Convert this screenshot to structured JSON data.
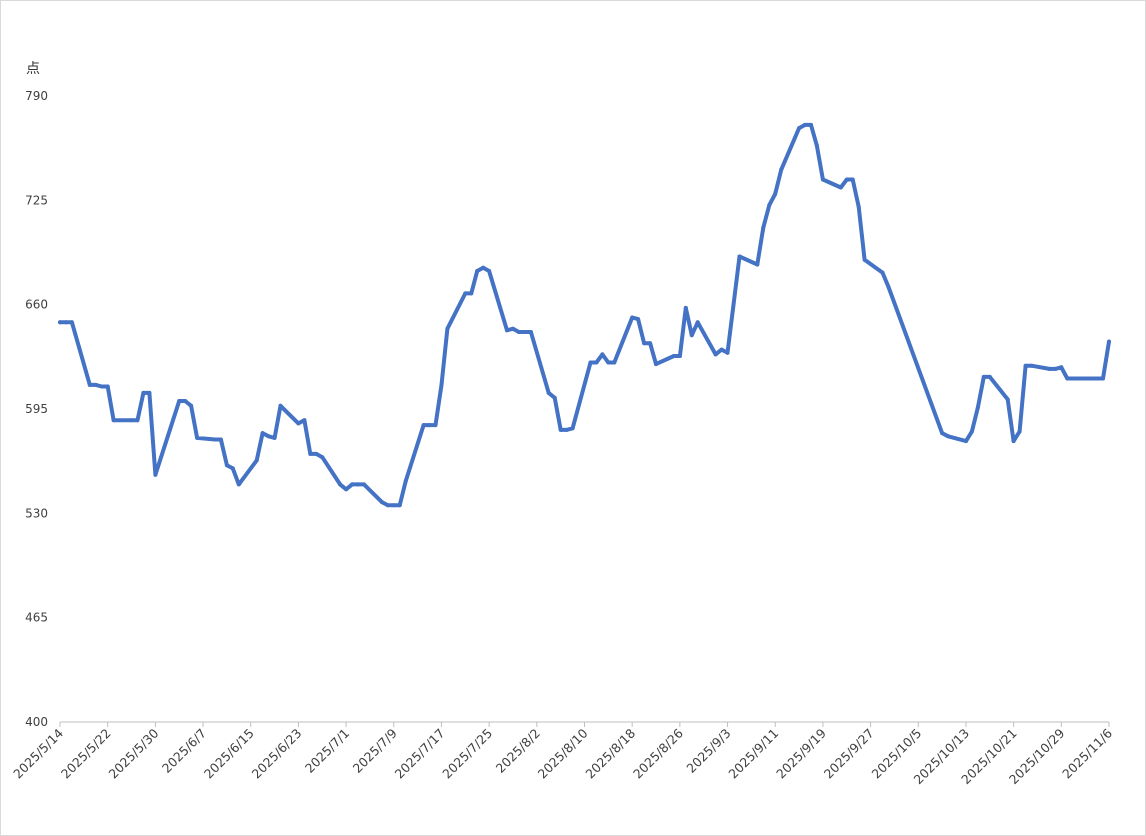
{
  "chart_data": {
    "type": "line",
    "unit_label": "点",
    "ylim": [
      400,
      790
    ],
    "yticks": [
      400,
      465,
      530,
      595,
      660,
      725,
      790
    ],
    "xlim": [
      "2025/5/14",
      "2025/11/6"
    ],
    "xticks": [
      "2025/5/14",
      "2025/5/22",
      "2025/5/30",
      "2025/6/7",
      "2025/6/15",
      "2025/6/23",
      "2025/7/1",
      "2025/7/9",
      "2025/7/17",
      "2025/7/25",
      "2025/8/2",
      "2025/8/10",
      "2025/8/18",
      "2025/8/26",
      "2025/9/3",
      "2025/9/11",
      "2025/9/19",
      "2025/9/27",
      "2025/10/5",
      "2025/10/13",
      "2025/10/21",
      "2025/10/29",
      "2025/11/6"
    ],
    "grid": false,
    "legend": "none",
    "line_color": "#4472C4",
    "series": [
      {
        "x": [
          "2025/5/14",
          "2025/5/15",
          "2025/5/16",
          "2025/5/19",
          "2025/5/20",
          "2025/5/21",
          "2025/5/22",
          "2025/5/23",
          "2025/5/26",
          "2025/5/27",
          "2025/5/28",
          "2025/5/29",
          "2025/5/30",
          "2025/6/3",
          "2025/6/4",
          "2025/6/5",
          "2025/6/6",
          "2025/6/9",
          "2025/6/10",
          "2025/6/11",
          "2025/6/12",
          "2025/6/13",
          "2025/6/16",
          "2025/6/17",
          "2025/6/18",
          "2025/6/19",
          "2025/6/20",
          "2025/6/23",
          "2025/6/24",
          "2025/6/25",
          "2025/6/26",
          "2025/6/27",
          "2025/6/30",
          "2025/7/1",
          "2025/7/2",
          "2025/7/3",
          "2025/7/4",
          "2025/7/7",
          "2025/7/8",
          "2025/7/9",
          "2025/7/10",
          "2025/7/11",
          "2025/7/14",
          "2025/7/15",
          "2025/7/16",
          "2025/7/17",
          "2025/7/18",
          "2025/7/21",
          "2025/7/22",
          "2025/7/23",
          "2025/7/24",
          "2025/7/25",
          "2025/7/28",
          "2025/7/29",
          "2025/7/30",
          "2025/7/31",
          "2025/8/1",
          "2025/8/4",
          "2025/8/5",
          "2025/8/6",
          "2025/8/7",
          "2025/8/8",
          "2025/8/11",
          "2025/8/12",
          "2025/8/13",
          "2025/8/14",
          "2025/8/15",
          "2025/8/18",
          "2025/8/19",
          "2025/8/20",
          "2025/8/21",
          "2025/8/22",
          "2025/8/25",
          "2025/8/26",
          "2025/8/27",
          "2025/8/28",
          "2025/8/29",
          "2025/9/1",
          "2025/9/2",
          "2025/9/3",
          "2025/9/4",
          "2025/9/5",
          "2025/9/8",
          "2025/9/9",
          "2025/9/10",
          "2025/9/11",
          "2025/9/12",
          "2025/9/15",
          "2025/9/16",
          "2025/9/17",
          "2025/9/18",
          "2025/9/19",
          "2025/9/22",
          "2025/9/23",
          "2025/9/24",
          "2025/9/25",
          "2025/9/26",
          "2025/9/29",
          "2025/9/30",
          "2025/10/9",
          "2025/10/10",
          "2025/10/13",
          "2025/10/14",
          "2025/10/15",
          "2025/10/16",
          "2025/10/17",
          "2025/10/20",
          "2025/10/21",
          "2025/10/22",
          "2025/10/23",
          "2025/10/24",
          "2025/10/27",
          "2025/10/28",
          "2025/10/29",
          "2025/10/30",
          "2025/10/31",
          "2025/11/3",
          "2025/11/4",
          "2025/11/5",
          "2025/11/6"
        ],
        "values": [
          649,
          649,
          649,
          610,
          610,
          609,
          609,
          588,
          588,
          588,
          605,
          605,
          554,
          600,
          600,
          597,
          577,
          576,
          576,
          560,
          558,
          548,
          563,
          580,
          578,
          577,
          597,
          586,
          588,
          567,
          567,
          565,
          548,
          545,
          548,
          548,
          548,
          537,
          535,
          535,
          535,
          550,
          585,
          585,
          585,
          610,
          645,
          667,
          667,
          681,
          683,
          681,
          644,
          645,
          643,
          643,
          643,
          605,
          602,
          582,
          582,
          583,
          624,
          624,
          629,
          624,
          624,
          652,
          651,
          636,
          636,
          623,
          628,
          628,
          658,
          641,
          649,
          629,
          632,
          630,
          660,
          690,
          685,
          708,
          722,
          729,
          744,
          770,
          772,
          772,
          759,
          738,
          733,
          738,
          738,
          721,
          688,
          680,
          671,
          580,
          578,
          575,
          581,
          596,
          615,
          615,
          601,
          575,
          581,
          622,
          622,
          620,
          620,
          621,
          614,
          614,
          614,
          614,
          614,
          637
        ]
      }
    ]
  }
}
